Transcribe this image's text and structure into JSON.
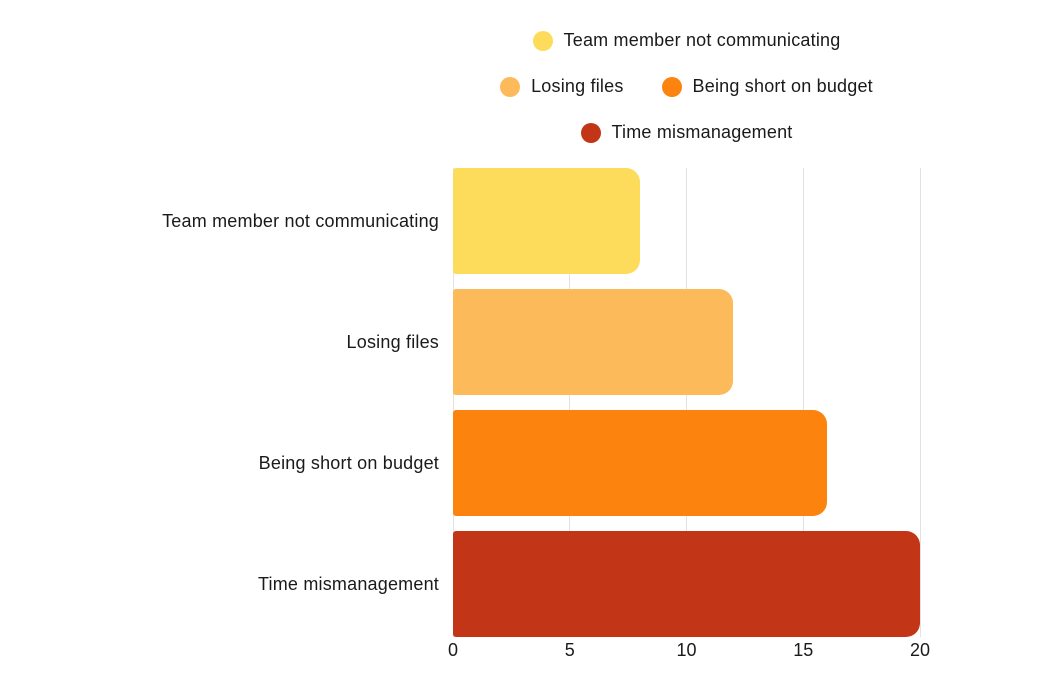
{
  "chart_data": {
    "type": "bar",
    "orientation": "horizontal",
    "title": "",
    "xlabel": "",
    "ylabel": "",
    "categories": [
      "Team member not communicating",
      "Losing files",
      "Being short on budget",
      "Time mismanagement"
    ],
    "values": [
      8,
      12,
      16,
      20
    ],
    "bar_colors": [
      "#FDDC5B",
      "#FDBA5B",
      "#FB830E",
      "#C23517"
    ],
    "xlim": [
      0,
      20
    ],
    "xticks": [
      0,
      5,
      10,
      15,
      20
    ],
    "grid": "vertical",
    "gridline_color": "#e2e2e2",
    "text_color": "#1a1a1a",
    "legend": {
      "position": "top-center",
      "rows": [
        [
          0
        ],
        [
          1,
          2
        ],
        [
          3
        ]
      ],
      "entries": [
        {
          "label": "Team member not communicating",
          "color": "#FDDC5B"
        },
        {
          "label": "Losing files",
          "color": "#FDBA5B"
        },
        {
          "label": "Being short on budget",
          "color": "#FB830E"
        },
        {
          "label": "Time mismanagement",
          "color": "#C23517"
        }
      ]
    }
  }
}
